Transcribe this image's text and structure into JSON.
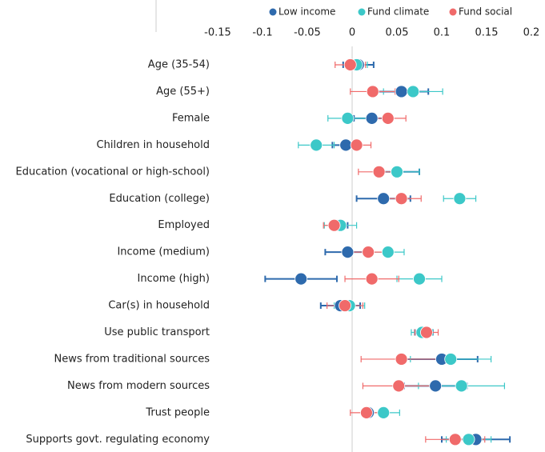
{
  "chart_data": {
    "type": "dot",
    "categories": [
      "Age (35-54)",
      "Age (55+)",
      "Female",
      "Children in household",
      "Education (vocational or high-school)",
      "Education (college)",
      "Employed",
      "Income (medium)",
      "Income (high)",
      "Car(s) in household",
      "Use public transport",
      "News from traditional sources",
      "News from modern sources",
      "Trust people",
      "Supports govt. regulating economy"
    ],
    "series": [
      {
        "name": "Low income",
        "color": "#2e6aad",
        "values": [
          0.007,
          0.055,
          0.022,
          -0.007,
          0.05,
          0.035,
          -0.015,
          -0.005,
          -0.057,
          -0.013,
          0.08,
          0.1,
          0.093,
          0.018,
          0.138
        ],
        "errors": [
          0.017,
          0.03,
          0.02,
          0.015,
          0.025,
          0.03,
          0.01,
          0.025,
          0.04,
          0.022,
          0.01,
          0.04,
          0.035,
          0.005,
          0.038
        ]
      },
      {
        "name": "Fund climate",
        "color": "#3cc8c8",
        "values": [
          0.005,
          0.068,
          -0.005,
          -0.04,
          0.05,
          0.12,
          -0.013,
          0.04,
          0.075,
          -0.003,
          0.078,
          0.11,
          0.122,
          0.035,
          0.13
        ],
        "errors": [
          0.012,
          0.033,
          0.022,
          0.02,
          0.025,
          0.018,
          0.018,
          0.018,
          0.025,
          0.017,
          0.012,
          0.045,
          0.048,
          0.018,
          0.025
        ]
      },
      {
        "name": "Fund social",
        "color": "#f06a6a",
        "values": [
          -0.002,
          0.023,
          0.04,
          0.005,
          0.03,
          0.055,
          -0.02,
          0.018,
          0.022,
          -0.008,
          0.083,
          0.055,
          0.052,
          0.016,
          0.115
        ],
        "errors": [
          0.017,
          0.025,
          0.02,
          0.016,
          0.023,
          0.022,
          0.012,
          0.02,
          0.03,
          0.02,
          0.013,
          0.045,
          0.04,
          0.018,
          0.033
        ]
      }
    ],
    "xlim": [
      -0.15,
      0.2
    ],
    "xticks": [
      -0.15,
      -0.1,
      -0.05,
      0,
      0.05,
      0.1,
      0.15,
      0.2
    ]
  }
}
